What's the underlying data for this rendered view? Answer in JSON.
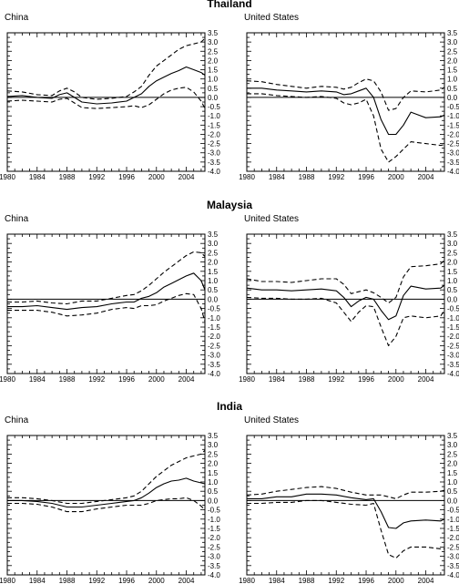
{
  "chart_data": [
    {
      "type": "line",
      "row_title": "Thailand",
      "title": "China",
      "xlim": [
        1980,
        2006.5
      ],
      "ylim": [
        -4.0,
        3.5
      ],
      "x_ticks": [
        "1980",
        "1984",
        "1988",
        "1992",
        "1996",
        "2000",
        "2004"
      ],
      "y_ticks": [
        "3.5",
        "3.0",
        "2.5",
        "2.0",
        "1.5",
        "1.0",
        "0.5",
        "0.0",
        "-0.5",
        "-1.0",
        "-1.5",
        "-2.0",
        "-2.5",
        "-3.0",
        "-3.5",
        "-4.0"
      ],
      "series": [
        {
          "style": "solid",
          "x": [
            1980,
            1982,
            1984,
            1986,
            1987,
            1988,
            1989,
            1990,
            1992,
            1994,
            1996,
            1997,
            1998,
            1999,
            2000,
            2001,
            2002,
            2003,
            2004,
            2005,
            2006,
            2006.5
          ],
          "y": [
            0.05,
            0.1,
            0.0,
            -0.05,
            0.15,
            0.25,
            0.0,
            -0.25,
            -0.35,
            -0.3,
            -0.2,
            0.0,
            0.2,
            0.6,
            0.9,
            1.1,
            1.3,
            1.45,
            1.65,
            1.5,
            1.35,
            1.2
          ]
        },
        {
          "style": "dashed",
          "x": [
            1980,
            1982,
            1984,
            1986,
            1987,
            1988,
            1989,
            1990,
            1992,
            1994,
            1996,
            1997,
            1998,
            1999,
            2000,
            2001,
            2002,
            2003,
            2004,
            2005,
            2006,
            2006.5
          ],
          "y": [
            0.35,
            0.3,
            0.15,
            0.1,
            0.35,
            0.5,
            0.3,
            0.0,
            -0.1,
            -0.05,
            0.05,
            0.3,
            0.6,
            1.2,
            1.7,
            2.0,
            2.3,
            2.6,
            2.8,
            2.9,
            3.0,
            3.2
          ]
        },
        {
          "style": "dashed",
          "x": [
            1980,
            1982,
            1984,
            1986,
            1987,
            1988,
            1989,
            1990,
            1992,
            1994,
            1996,
            1997,
            1998,
            1999,
            2000,
            2001,
            2002,
            2003,
            2004,
            2005,
            2006,
            2006.5
          ],
          "y": [
            -0.2,
            -0.15,
            -0.2,
            -0.25,
            -0.1,
            -0.05,
            -0.3,
            -0.55,
            -0.6,
            -0.55,
            -0.5,
            -0.45,
            -0.55,
            -0.4,
            -0.1,
            0.2,
            0.4,
            0.5,
            0.55,
            0.3,
            -0.2,
            -0.6
          ]
        }
      ]
    },
    {
      "type": "line",
      "row_title": "Thailand",
      "title": "United States",
      "xlim": [
        1980,
        2006.5
      ],
      "ylim": [
        -4.0,
        3.5
      ],
      "x_ticks": [
        "1980",
        "1984",
        "1988",
        "1992",
        "1996",
        "2000",
        "2004"
      ],
      "y_ticks": [
        "3.5",
        "3.0",
        "2.5",
        "2.0",
        "1.5",
        "1.0",
        "0.5",
        "0.0",
        "-0.5",
        "-1.0",
        "-1.5",
        "-2.0",
        "-2.5",
        "-3.0",
        "-3.5",
        "-4.0"
      ],
      "series": [
        {
          "style": "solid",
          "x": [
            1980,
            1982,
            1984,
            1986,
            1988,
            1990,
            1992,
            1993,
            1994,
            1995,
            1996,
            1997,
            1998,
            1999,
            2000,
            2001,
            2002,
            2004,
            2006,
            2006.5
          ],
          "y": [
            0.5,
            0.5,
            0.4,
            0.35,
            0.3,
            0.35,
            0.3,
            0.15,
            0.2,
            0.35,
            0.5,
            0.0,
            -1.2,
            -2.0,
            -2.0,
            -1.5,
            -0.8,
            -1.1,
            -1.05,
            -0.95
          ]
        },
        {
          "style": "dashed",
          "x": [
            1980,
            1982,
            1984,
            1986,
            1988,
            1990,
            1992,
            1993,
            1994,
            1995,
            1996,
            1997,
            1998,
            1999,
            2000,
            2001,
            2002,
            2004,
            2006,
            2006.5
          ],
          "y": [
            0.9,
            0.85,
            0.7,
            0.6,
            0.5,
            0.6,
            0.55,
            0.45,
            0.55,
            0.8,
            1.0,
            0.9,
            0.3,
            -0.7,
            -0.6,
            0.0,
            0.35,
            0.3,
            0.4,
            0.55
          ]
        },
        {
          "style": "dashed",
          "x": [
            1980,
            1982,
            1984,
            1986,
            1988,
            1990,
            1992,
            1993,
            1994,
            1995,
            1996,
            1997,
            1998,
            1999,
            2000,
            2001,
            2002,
            2004,
            2006,
            2006.5
          ],
          "y": [
            0.2,
            0.2,
            0.1,
            0.05,
            0.0,
            0.05,
            -0.05,
            -0.3,
            -0.4,
            -0.3,
            -0.1,
            -1.0,
            -2.8,
            -3.5,
            -3.2,
            -2.8,
            -2.4,
            -2.5,
            -2.6,
            -2.55
          ]
        }
      ]
    },
    {
      "type": "line",
      "row_title": "Malaysia",
      "title": "China",
      "xlim": [
        1980,
        2006.5
      ],
      "ylim": [
        -4.0,
        3.5
      ],
      "x_ticks": [
        "1980",
        "1984",
        "1988",
        "1992",
        "1996",
        "2000",
        "2004"
      ],
      "y_ticks": [
        "3.5",
        "3.0",
        "2.5",
        "2.0",
        "1.5",
        "1.0",
        "0.5",
        "0.0",
        "-0.5",
        "-1.0",
        "-1.5",
        "-2.0",
        "-2.5",
        "-3.0",
        "-3.5",
        "-4.0"
      ],
      "series": [
        {
          "style": "solid",
          "x": [
            1980,
            1982,
            1984,
            1986,
            1988,
            1990,
            1992,
            1994,
            1996,
            1997,
            1998,
            1999,
            2000,
            2001,
            2002,
            2003,
            2004,
            2005,
            2006,
            2006.5
          ],
          "y": [
            -0.4,
            -0.4,
            -0.35,
            -0.45,
            -0.55,
            -0.45,
            -0.4,
            -0.25,
            -0.15,
            -0.15,
            0.05,
            0.15,
            0.35,
            0.65,
            0.85,
            1.05,
            1.25,
            1.4,
            1.0,
            0.5
          ]
        },
        {
          "style": "dashed",
          "x": [
            1980,
            1982,
            1984,
            1986,
            1988,
            1990,
            1992,
            1994,
            1996,
            1997,
            1998,
            1999,
            2000,
            2001,
            2002,
            2003,
            2004,
            2005,
            2006,
            2006.5
          ],
          "y": [
            -0.15,
            -0.15,
            -0.1,
            -0.2,
            -0.25,
            -0.1,
            -0.1,
            0.05,
            0.2,
            0.25,
            0.45,
            0.75,
            1.1,
            1.45,
            1.75,
            2.05,
            2.35,
            2.55,
            2.5,
            2.3
          ]
        },
        {
          "style": "dashed",
          "x": [
            1980,
            1982,
            1984,
            1986,
            1988,
            1990,
            1992,
            1994,
            1996,
            1997,
            1998,
            1999,
            2000,
            2001,
            2002,
            2003,
            2004,
            2005,
            2006,
            2006.5
          ],
          "y": [
            -0.6,
            -0.6,
            -0.6,
            -0.7,
            -0.9,
            -0.85,
            -0.75,
            -0.55,
            -0.45,
            -0.5,
            -0.35,
            -0.35,
            -0.3,
            -0.1,
            0.05,
            0.2,
            0.3,
            0.25,
            -0.5,
            -1.2
          ]
        }
      ]
    },
    {
      "type": "line",
      "row_title": "Malaysia",
      "title": "United States",
      "xlim": [
        1980,
        2006.5
      ],
      "ylim": [
        -4.0,
        3.5
      ],
      "x_ticks": [
        "1980",
        "1984",
        "1988",
        "1992",
        "1996",
        "2000",
        "2004"
      ],
      "y_ticks": [
        "3.5",
        "3.0",
        "2.5",
        "2.0",
        "1.5",
        "1.0",
        "0.5",
        "0.0",
        "-0.5",
        "-1.0",
        "-1.5",
        "-2.0",
        "-2.5",
        "-3.0",
        "-3.5",
        "-4.0"
      ],
      "series": [
        {
          "style": "solid",
          "x": [
            1980,
            1982,
            1984,
            1986,
            1988,
            1990,
            1992,
            1993,
            1994,
            1995,
            1996,
            1997,
            1998,
            1999,
            2000,
            2001,
            2002,
            2004,
            2006,
            2006.5
          ],
          "y": [
            0.6,
            0.5,
            0.5,
            0.45,
            0.5,
            0.55,
            0.45,
            0.1,
            -0.4,
            -0.1,
            0.1,
            0.0,
            -0.6,
            -1.1,
            -0.9,
            0.2,
            0.7,
            0.55,
            0.6,
            0.75
          ]
        },
        {
          "style": "dashed",
          "x": [
            1980,
            1982,
            1984,
            1986,
            1988,
            1990,
            1992,
            1993,
            1994,
            1995,
            1996,
            1997,
            1998,
            1999,
            2000,
            2001,
            2002,
            2004,
            2006,
            2006.5
          ],
          "y": [
            1.1,
            0.95,
            0.95,
            0.9,
            1.0,
            1.1,
            1.1,
            0.8,
            0.3,
            0.4,
            0.5,
            0.35,
            0.1,
            -0.2,
            0.1,
            1.2,
            1.75,
            1.8,
            1.9,
            2.1
          ]
        },
        {
          "style": "dashed",
          "x": [
            1980,
            1982,
            1984,
            1986,
            1988,
            1990,
            1992,
            1993,
            1994,
            1995,
            1996,
            1997,
            1998,
            1999,
            2000,
            2001,
            2002,
            2004,
            2006,
            2006.5
          ],
          "y": [
            0.1,
            0.05,
            0.05,
            0.0,
            0.0,
            0.05,
            -0.2,
            -0.7,
            -1.2,
            -0.7,
            -0.35,
            -0.4,
            -1.5,
            -2.5,
            -2.0,
            -1.0,
            -0.9,
            -1.0,
            -0.9,
            -0.6
          ]
        }
      ]
    },
    {
      "type": "line",
      "row_title": "India",
      "title": "China",
      "xlim": [
        1980,
        2006.5
      ],
      "ylim": [
        -4.0,
        3.5
      ],
      "x_ticks": [
        "1980",
        "1984",
        "1988",
        "1992",
        "1996",
        "2000",
        "2004"
      ],
      "y_ticks": [
        "3.5",
        "3.0",
        "2.5",
        "2.0",
        "1.5",
        "1.0",
        "0.5",
        "0.0",
        "-0.5",
        "-1.0",
        "-1.5",
        "-2.0",
        "-2.5",
        "-3.0",
        "-3.5",
        "-4.0"
      ],
      "series": [
        {
          "style": "solid",
          "x": [
            1980,
            1982,
            1984,
            1986,
            1988,
            1990,
            1992,
            1994,
            1996,
            1997,
            1998,
            1999,
            2000,
            2001,
            2002,
            2003,
            2004,
            2005,
            2006,
            2006.5
          ],
          "y": [
            0.0,
            0.0,
            -0.05,
            -0.15,
            -0.35,
            -0.35,
            -0.25,
            -0.15,
            -0.05,
            0.0,
            0.15,
            0.4,
            0.7,
            0.9,
            1.05,
            1.1,
            1.2,
            1.05,
            0.95,
            0.9
          ]
        },
        {
          "style": "dashed",
          "x": [
            1980,
            1982,
            1984,
            1986,
            1988,
            1990,
            1992,
            1994,
            1996,
            1997,
            1998,
            1999,
            2000,
            2001,
            2002,
            2003,
            2004,
            2005,
            2006,
            2006.5
          ],
          "y": [
            0.15,
            0.15,
            0.1,
            0.0,
            -0.15,
            -0.15,
            -0.05,
            0.05,
            0.15,
            0.25,
            0.5,
            0.9,
            1.3,
            1.6,
            1.9,
            2.1,
            2.3,
            2.4,
            2.5,
            2.7
          ]
        },
        {
          "style": "dashed",
          "x": [
            1980,
            1982,
            1984,
            1986,
            1988,
            1990,
            1992,
            1994,
            1996,
            1997,
            1998,
            1999,
            2000,
            2001,
            2002,
            2003,
            2004,
            2005,
            2006,
            2006.5
          ],
          "y": [
            -0.15,
            -0.15,
            -0.2,
            -0.35,
            -0.6,
            -0.6,
            -0.45,
            -0.35,
            -0.25,
            -0.25,
            -0.25,
            -0.15,
            0.0,
            0.05,
            0.1,
            0.1,
            0.15,
            0.0,
            -0.3,
            -0.5
          ]
        }
      ]
    },
    {
      "type": "line",
      "row_title": "India",
      "title": "United States",
      "xlim": [
        1980,
        2006.5
      ],
      "ylim": [
        -4.0,
        3.5
      ],
      "x_ticks": [
        "1980",
        "1984",
        "1988",
        "1992",
        "1996",
        "2000",
        "2004"
      ],
      "y_ticks": [
        "3.5",
        "3.0",
        "2.5",
        "2.0",
        "1.5",
        "1.0",
        "0.5",
        "0.0",
        "-0.5",
        "-1.0",
        "-1.5",
        "-2.0",
        "-2.5",
        "-3.0",
        "-3.5",
        "-4.0"
      ],
      "series": [
        {
          "style": "solid",
          "x": [
            1980,
            1982,
            1984,
            1986,
            1988,
            1990,
            1992,
            1994,
            1996,
            1997,
            1998,
            1999,
            2000,
            2001,
            2002,
            2004,
            2006,
            2006.5
          ],
          "y": [
            0.1,
            0.1,
            0.2,
            0.2,
            0.35,
            0.35,
            0.3,
            0.15,
            0.05,
            0.1,
            -0.6,
            -1.45,
            -1.5,
            -1.2,
            -1.1,
            -1.05,
            -1.1,
            -1.0
          ]
        },
        {
          "style": "dashed",
          "x": [
            1980,
            1982,
            1984,
            1986,
            1988,
            1990,
            1992,
            1994,
            1996,
            1997,
            1998,
            1999,
            2000,
            2001,
            2002,
            2004,
            2006,
            2006.5
          ],
          "y": [
            0.3,
            0.35,
            0.5,
            0.6,
            0.7,
            0.75,
            0.65,
            0.45,
            0.3,
            0.3,
            0.3,
            0.2,
            0.1,
            0.3,
            0.45,
            0.45,
            0.5,
            0.55
          ]
        },
        {
          "style": "dashed",
          "x": [
            1980,
            1982,
            1984,
            1986,
            1988,
            1990,
            1992,
            1994,
            1996,
            1997,
            1998,
            1999,
            2000,
            2001,
            2002,
            2004,
            2006,
            2006.5
          ],
          "y": [
            -0.15,
            -0.15,
            -0.1,
            -0.1,
            0.0,
            0.0,
            -0.1,
            -0.2,
            -0.25,
            -0.15,
            -1.6,
            -2.9,
            -3.1,
            -2.7,
            -2.5,
            -2.5,
            -2.6,
            -2.6
          ]
        }
      ]
    }
  ]
}
